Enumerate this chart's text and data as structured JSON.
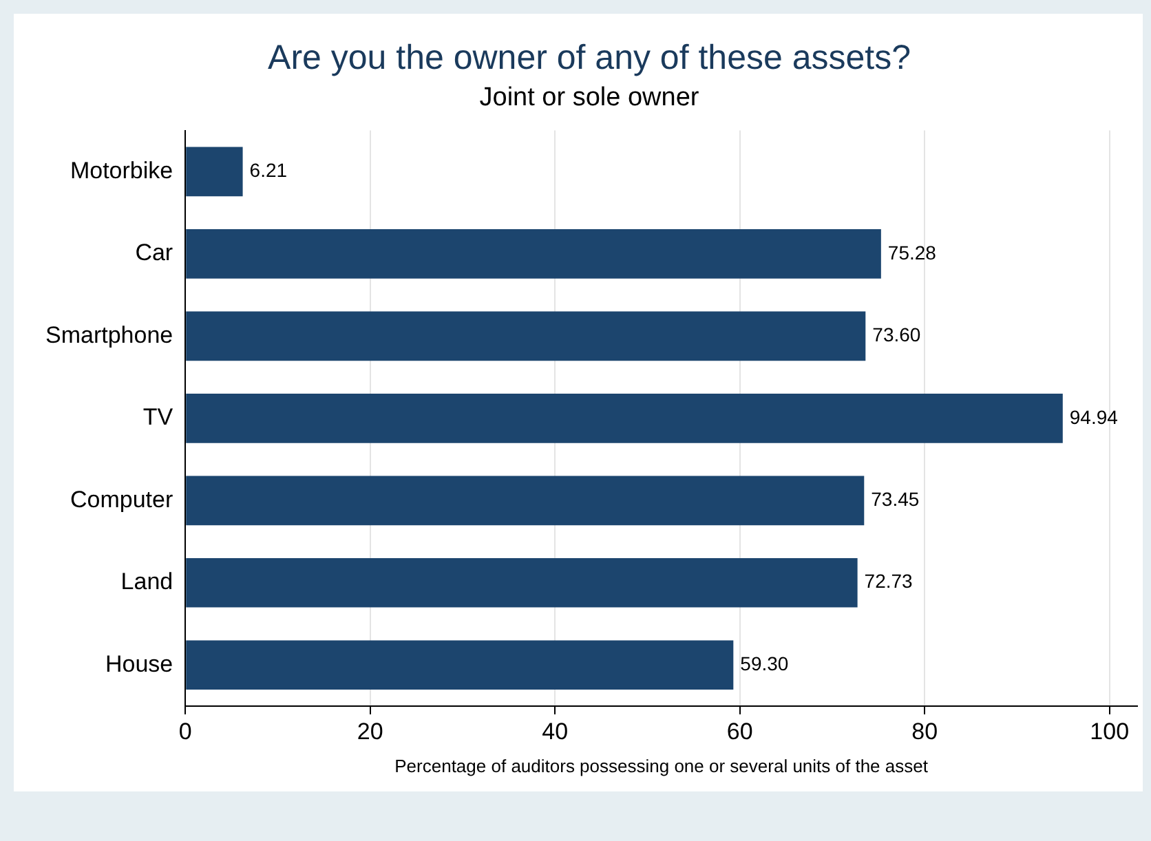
{
  "chart_data": {
    "type": "bar",
    "orientation": "horizontal",
    "title": "Are you the owner of any of these assets?",
    "subtitle": "Joint or sole owner",
    "xlabel": "Percentage of auditors possessing one or several units of the asset",
    "categories": [
      "Motorbike",
      "Car",
      "Smartphone",
      "TV",
      "Computer",
      "Land",
      "House"
    ],
    "values": [
      6.21,
      75.28,
      73.6,
      94.94,
      73.45,
      72.73,
      59.3
    ],
    "value_labels": [
      "6.21",
      "75.28",
      "73.60",
      "94.94",
      "73.45",
      "72.73",
      "59.30"
    ],
    "color": "#1c456e",
    "xlim": [
      0,
      103
    ],
    "xticks": [
      0,
      20,
      40,
      60,
      80,
      100
    ],
    "grid": "x",
    "legend": false
  }
}
